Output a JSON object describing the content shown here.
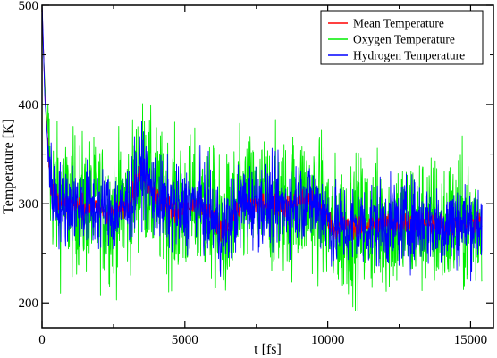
{
  "chart_data": {
    "type": "line",
    "xlabel": "t [fs]",
    "ylabel": "Temperature [K]",
    "xlim": [
      0,
      15800
    ],
    "ylim": [
      175,
      500
    ],
    "x_ticks": [
      0,
      5000,
      10000,
      15000
    ],
    "y_ticks": [
      200,
      300,
      400,
      500
    ],
    "x_tick_labels": [
      "0",
      "5000",
      "10000",
      "15000"
    ],
    "y_tick_labels": [
      "200",
      "300",
      "400",
      "500"
    ],
    "grid": false,
    "legend_position": "top-right",
    "x_range_of_series": [
      0,
      15400
    ],
    "series": [
      {
        "name": "Mean Temperature",
        "color": "#ff0000",
        "x": [
          0,
          100,
          300,
          600,
          1000,
          1500,
          2000,
          2500,
          3000,
          3300,
          3500,
          3800,
          4200,
          4800,
          5500,
          6000,
          6300,
          7000,
          7800,
          8500,
          9200,
          9800,
          10200,
          11000,
          12000,
          13000,
          14000,
          15000,
          15400
        ],
        "values": [
          500,
          410,
          320,
          300,
          300,
          298,
          295,
          290,
          300,
          320,
          335,
          315,
          300,
          292,
          300,
          285,
          270,
          300,
          300,
          298,
          305,
          295,
          275,
          278,
          280,
          282,
          278,
          280,
          282
        ],
        "noise_amplitude": 10
      },
      {
        "name": "Oxygen Temperature",
        "color": "#00ee00",
        "x": [
          0,
          100,
          300,
          600,
          1000,
          1500,
          2000,
          2500,
          3000,
          3300,
          3500,
          3800,
          4200,
          4800,
          5500,
          6000,
          6300,
          7000,
          7800,
          8500,
          9200,
          9800,
          10200,
          11000,
          12000,
          13000,
          14000,
          15000,
          15400
        ],
        "values": [
          485,
          420,
          320,
          300,
          300,
          298,
          295,
          290,
          300,
          320,
          335,
          315,
          300,
          292,
          300,
          285,
          270,
          300,
          300,
          298,
          305,
          295,
          275,
          278,
          280,
          282,
          278,
          280,
          282
        ],
        "noise_amplitude": 62
      },
      {
        "name": "Hydrogen Temperature",
        "color": "#0000ff",
        "x": [
          0,
          100,
          300,
          600,
          1000,
          1500,
          2000,
          2500,
          3000,
          3300,
          3500,
          3800,
          4200,
          4800,
          5500,
          6000,
          6300,
          7000,
          7800,
          8500,
          9200,
          9800,
          10200,
          11000,
          12000,
          13000,
          14000,
          15000,
          15400
        ],
        "values": [
          505,
          405,
          320,
          300,
          300,
          298,
          295,
          290,
          300,
          320,
          335,
          315,
          300,
          292,
          300,
          285,
          270,
          300,
          300,
          298,
          305,
          295,
          275,
          278,
          280,
          282,
          278,
          280,
          282
        ],
        "noise_amplitude": 38
      }
    ]
  }
}
